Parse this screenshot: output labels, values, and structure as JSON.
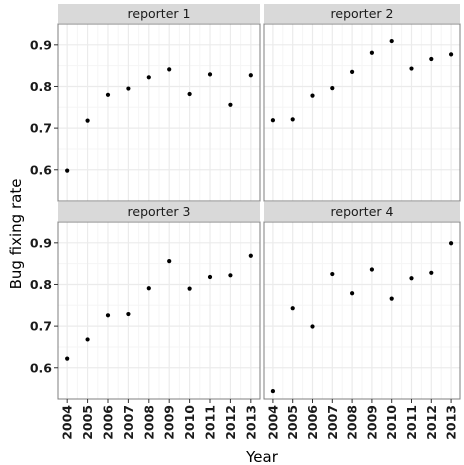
{
  "chart_data": {
    "type": "scatter",
    "xlabel": "Year",
    "ylabel": "Bug fixing rate",
    "x": [
      2004,
      2005,
      2006,
      2007,
      2008,
      2009,
      2010,
      2011,
      2012,
      2013
    ],
    "x_tick_labels": [
      "2004",
      "2005",
      "2006",
      "2007",
      "2008",
      "2009",
      "2010",
      "2011",
      "2012",
      "2013"
    ],
    "y_ticks": [
      0.6,
      0.7,
      0.8,
      0.9
    ],
    "y_tick_labels": [
      "0.6",
      "0.7",
      "0.8",
      "0.9"
    ],
    "ylim": [
      0.525,
      0.95
    ],
    "xlim": [
      2003.55,
      2013.45
    ],
    "grid": true,
    "facets": [
      {
        "label": "reporter 1",
        "values": [
          0.598,
          0.718,
          0.78,
          0.795,
          0.822,
          0.841,
          0.782,
          0.829,
          0.756,
          0.827
        ]
      },
      {
        "label": "reporter 2",
        "values": [
          0.719,
          0.721,
          0.778,
          0.796,
          0.835,
          0.881,
          0.909,
          0.843,
          0.866,
          0.877
        ]
      },
      {
        "label": "reporter 3",
        "values": [
          0.622,
          0.668,
          0.726,
          0.729,
          0.791,
          0.856,
          0.79,
          0.818,
          0.822,
          0.869
        ]
      },
      {
        "label": "reporter 4",
        "values": [
          0.544,
          0.743,
          0.699,
          0.825,
          0.779,
          0.836,
          0.766,
          0.815,
          0.828,
          0.899
        ]
      }
    ],
    "colors": {
      "panel_background": "#ffffff",
      "panel_border": "#7f7f7f",
      "strip_background": "#d9d9d9",
      "grid_major": "#ebebeb",
      "grid_minor": "#f5f5f5",
      "points": "#000000"
    }
  }
}
